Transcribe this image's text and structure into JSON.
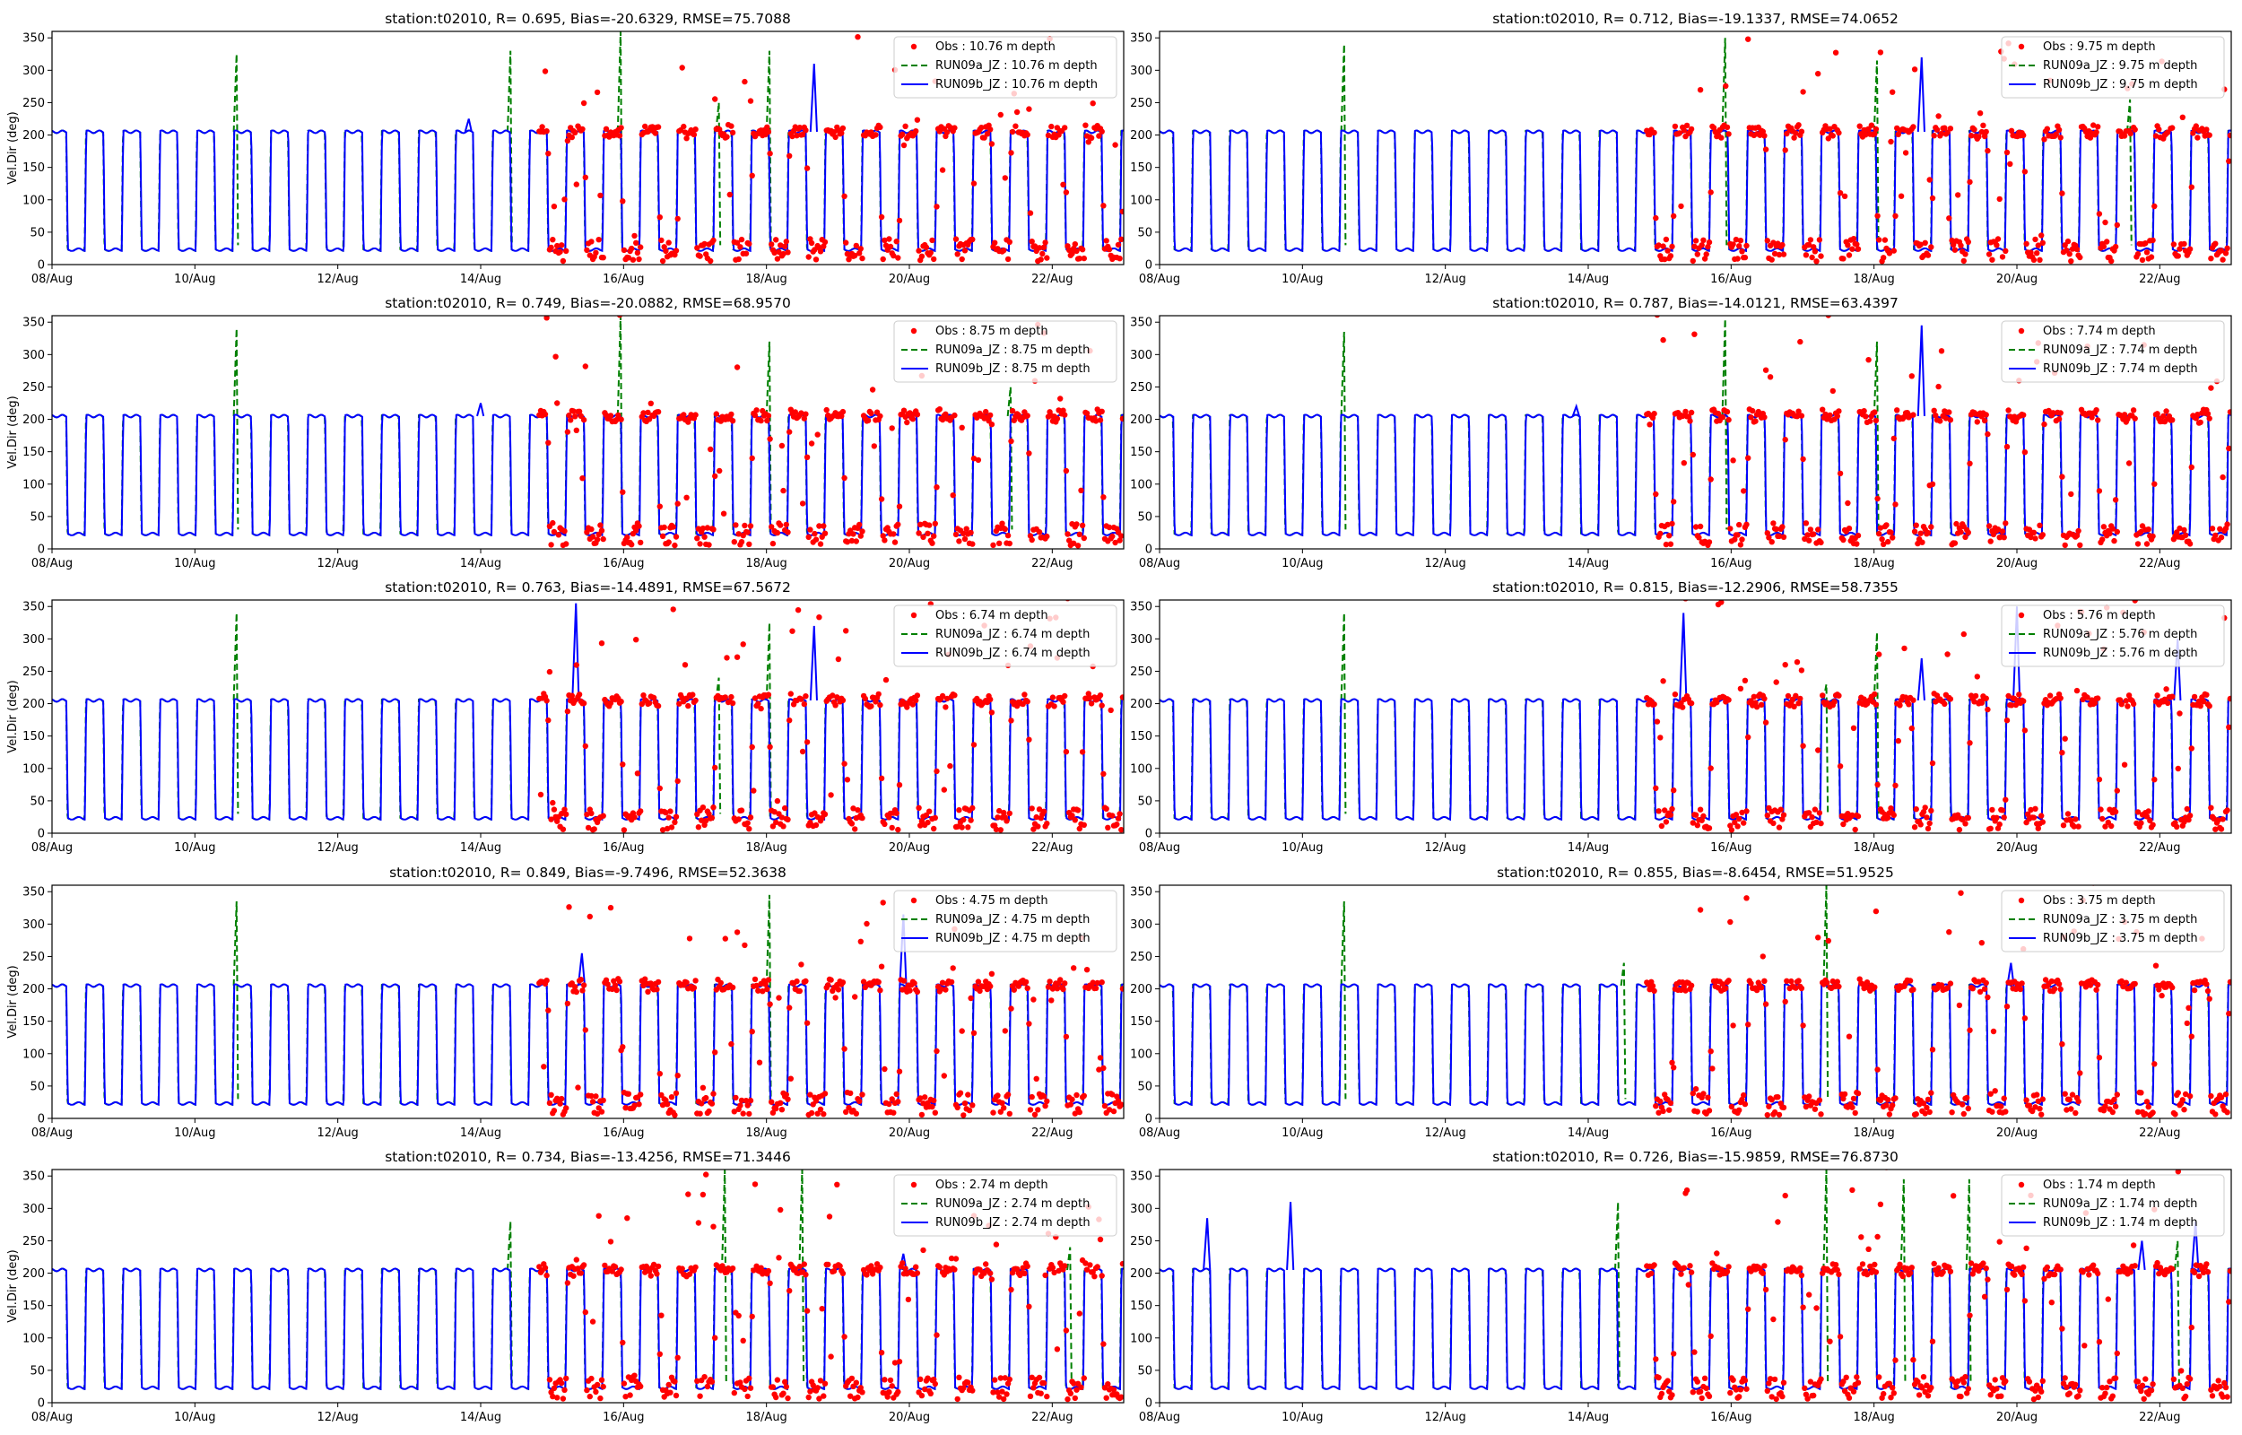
{
  "figure": {
    "ylabel": "Vel.Dir (deg)",
    "x_tick_labels": [
      "08/Aug",
      "10/Aug",
      "12/Aug",
      "14/Aug",
      "16/Aug",
      "18/Aug",
      "20/Aug",
      "22/Aug"
    ],
    "y_tick_labels": [
      "0",
      "50",
      "100",
      "150",
      "200",
      "250",
      "300",
      "350"
    ],
    "colors": {
      "obs": "#ff0000",
      "run_a": "#008000",
      "run_b": "#0000ff"
    }
  },
  "chart_data": [
    {
      "type": "line",
      "title": "station:t02010, R= 0.695, Bias=-20.6329, RMSE=75.7088",
      "depth": "10.76",
      "ylabel": "Vel.Dir (deg)",
      "xlim": [
        "2000-08-08",
        "2000-08-23"
      ],
      "ylim": [
        0,
        360
      ],
      "series": [
        {
          "name": "Obs : 10.76 m depth",
          "kind": "scatter"
        },
        {
          "name": "RUN09a_JZ : 10.76 m depth",
          "kind": "dashed"
        },
        {
          "name": "RUN09b_JZ : 10.76 m depth",
          "kind": "solid"
        }
      ],
      "legend_position": "top-right",
      "spikes_a": [
        {
          "x": "2000-08-10T14:00",
          "y": 325
        },
        {
          "x": "2000-08-14T10:00",
          "y": 330
        },
        {
          "x": "2000-08-15T23:00",
          "y": 360
        },
        {
          "x": "2000-08-17T08:00",
          "y": 250
        },
        {
          "x": "2000-08-18T01:00",
          "y": 330
        }
      ],
      "spikes_b": [
        {
          "x": "2000-08-13T20:00",
          "y": 225
        },
        {
          "x": "2000-08-18T16:00",
          "y": 310
        }
      ]
    },
    {
      "type": "line",
      "title": "station:t02010, R= 0.712, Bias=-19.1337, RMSE=74.0652",
      "depth": "9.75",
      "ylabel": "Vel.Dir (deg)",
      "xlim": [
        "2000-08-08",
        "2000-08-23"
      ],
      "ylim": [
        0,
        360
      ],
      "series": [
        {
          "name": "Obs : 9.75 m depth",
          "kind": "scatter"
        },
        {
          "name": "RUN09a_JZ : 9.75 m depth",
          "kind": "dashed"
        },
        {
          "name": "RUN09b_JZ : 9.75 m depth",
          "kind": "solid"
        }
      ],
      "legend_position": "top-right",
      "spikes_a": [
        {
          "x": "2000-08-10T14:00",
          "y": 340
        },
        {
          "x": "2000-08-15T22:00",
          "y": 350
        },
        {
          "x": "2000-08-18T01:00",
          "y": 315
        },
        {
          "x": "2000-08-21T14:00",
          "y": 255
        }
      ],
      "spikes_b": [
        {
          "x": "2000-08-18T16:00",
          "y": 320
        }
      ]
    },
    {
      "type": "line",
      "title": "station:t02010, R= 0.749, Bias=-20.0882, RMSE=68.9570",
      "depth": "8.75",
      "ylabel": "Vel.Dir (deg)",
      "xlim": [
        "2000-08-08",
        "2000-08-23"
      ],
      "ylim": [
        0,
        360
      ],
      "series": [
        {
          "name": "Obs : 8.75 m depth",
          "kind": "scatter"
        },
        {
          "name": "RUN09a_JZ : 8.75 m depth",
          "kind": "dashed"
        },
        {
          "name": "RUN09b_JZ : 8.75 m depth",
          "kind": "solid"
        }
      ],
      "legend_position": "top-right",
      "spikes_a": [
        {
          "x": "2000-08-10T14:00",
          "y": 340
        },
        {
          "x": "2000-08-15T23:00",
          "y": 360
        },
        {
          "x": "2000-08-18T01:00",
          "y": 320
        },
        {
          "x": "2000-08-21T10:00",
          "y": 250
        }
      ],
      "spikes_b": [
        {
          "x": "2000-08-14T00:00",
          "y": 225
        }
      ]
    },
    {
      "type": "line",
      "title": "station:t02010, R= 0.787, Bias=-14.0121, RMSE=63.4397",
      "depth": "7.74",
      "ylabel": "Vel.Dir (deg)",
      "xlim": [
        "2000-08-08",
        "2000-08-23"
      ],
      "ylim": [
        0,
        360
      ],
      "series": [
        {
          "name": "Obs : 7.74 m depth",
          "kind": "scatter"
        },
        {
          "name": "RUN09a_JZ : 7.74 m depth",
          "kind": "dashed"
        },
        {
          "name": "RUN09b_JZ : 7.74 m depth",
          "kind": "solid"
        }
      ],
      "legend_position": "top-right",
      "spikes_a": [
        {
          "x": "2000-08-10T14:00",
          "y": 335
        },
        {
          "x": "2000-08-15T22:00",
          "y": 355
        },
        {
          "x": "2000-08-18T01:00",
          "y": 320
        }
      ],
      "spikes_b": [
        {
          "x": "2000-08-18T16:00",
          "y": 345
        },
        {
          "x": "2000-08-13T20:00",
          "y": 220
        }
      ]
    },
    {
      "type": "line",
      "title": "station:t02010, R= 0.763, Bias=-14.4891, RMSE=67.5672",
      "depth": "6.74",
      "ylabel": "Vel.Dir (deg)",
      "xlim": [
        "2000-08-08",
        "2000-08-23"
      ],
      "ylim": [
        0,
        360
      ],
      "series": [
        {
          "name": "Obs : 6.74 m depth",
          "kind": "scatter"
        },
        {
          "name": "RUN09a_JZ : 6.74 m depth",
          "kind": "dashed"
        },
        {
          "name": "RUN09b_JZ : 6.74 m depth",
          "kind": "solid"
        }
      ],
      "legend_position": "top-right",
      "spikes_a": [
        {
          "x": "2000-08-10T14:00",
          "y": 340
        },
        {
          "x": "2000-08-18T01:00",
          "y": 325
        },
        {
          "x": "2000-08-17T08:00",
          "y": 240
        }
      ],
      "spikes_b": [
        {
          "x": "2000-08-15T08:00",
          "y": 355
        },
        {
          "x": "2000-08-18T16:00",
          "y": 320
        }
      ]
    },
    {
      "type": "line",
      "title": "station:t02010, R= 0.815, Bias=-12.2906, RMSE=58.7355",
      "depth": "5.76",
      "ylabel": "Vel.Dir (deg)",
      "xlim": [
        "2000-08-08",
        "2000-08-23"
      ],
      "ylim": [
        0,
        360
      ],
      "series": [
        {
          "name": "Obs : 5.76 m depth",
          "kind": "scatter"
        },
        {
          "name": "RUN09a_JZ : 5.76 m depth",
          "kind": "dashed"
        },
        {
          "name": "RUN09b_JZ : 5.76 m depth",
          "kind": "solid"
        }
      ],
      "legend_position": "top-right",
      "spikes_a": [
        {
          "x": "2000-08-10T14:00",
          "y": 340
        },
        {
          "x": "2000-08-18T01:00",
          "y": 310
        },
        {
          "x": "2000-08-17T08:00",
          "y": 230
        }
      ],
      "spikes_b": [
        {
          "x": "2000-08-15T08:00",
          "y": 340
        },
        {
          "x": "2000-08-18T16:00",
          "y": 270
        },
        {
          "x": "2000-08-20T00:00",
          "y": 350
        },
        {
          "x": "2000-08-22T06:00",
          "y": 300
        }
      ]
    },
    {
      "type": "line",
      "title": "station:t02010, R= 0.849, Bias=-9.7496, RMSE=52.3638",
      "depth": "4.75",
      "ylabel": "Vel.Dir (deg)",
      "xlim": [
        "2000-08-08",
        "2000-08-23"
      ],
      "ylim": [
        0,
        360
      ],
      "series": [
        {
          "name": "Obs : 4.75 m depth",
          "kind": "scatter"
        },
        {
          "name": "RUN09a_JZ : 4.75 m depth",
          "kind": "dashed"
        },
        {
          "name": "RUN09b_JZ : 4.75 m depth",
          "kind": "solid"
        }
      ],
      "legend_position": "top-right",
      "spikes_a": [
        {
          "x": "2000-08-10T14:00",
          "y": 335
        },
        {
          "x": "2000-08-18T01:00",
          "y": 345
        }
      ],
      "spikes_b": [
        {
          "x": "2000-08-15T10:00",
          "y": 255
        },
        {
          "x": "2000-08-19T22:00",
          "y": 315
        }
      ]
    },
    {
      "type": "line",
      "title": "station:t02010, R= 0.855, Bias=-8.6454, RMSE=51.9525",
      "depth": "3.75",
      "ylabel": "Vel.Dir (deg)",
      "xlim": [
        "2000-08-08",
        "2000-08-23"
      ],
      "ylim": [
        0,
        360
      ],
      "series": [
        {
          "name": "Obs : 3.75 m depth",
          "kind": "scatter"
        },
        {
          "name": "RUN09a_JZ : 3.75 m depth",
          "kind": "dashed"
        },
        {
          "name": "RUN09b_JZ : 3.75 m depth",
          "kind": "solid"
        }
      ],
      "legend_position": "top-right",
      "spikes_a": [
        {
          "x": "2000-08-10T14:00",
          "y": 335
        },
        {
          "x": "2000-08-14T12:00",
          "y": 240
        },
        {
          "x": "2000-08-17T08:00",
          "y": 360
        }
      ],
      "spikes_b": [
        {
          "x": "2000-08-19T22:00",
          "y": 240
        }
      ]
    },
    {
      "type": "line",
      "title": "station:t02010, R= 0.734, Bias=-13.4256, RMSE=71.3446",
      "depth": "2.74",
      "ylabel": "Vel.Dir (deg)",
      "xlim": [
        "2000-08-08",
        "2000-08-23"
      ],
      "ylim": [
        0,
        360
      ],
      "series": [
        {
          "name": "Obs : 2.74 m depth",
          "kind": "scatter"
        },
        {
          "name": "RUN09a_JZ : 2.74 m depth",
          "kind": "dashed"
        },
        {
          "name": "RUN09b_JZ : 2.74 m depth",
          "kind": "solid"
        }
      ],
      "legend_position": "top-right",
      "spikes_a": [
        {
          "x": "2000-08-14T10:00",
          "y": 280
        },
        {
          "x": "2000-08-17T10:00",
          "y": 360
        },
        {
          "x": "2000-08-18T12:00",
          "y": 360
        },
        {
          "x": "2000-08-22T06:00",
          "y": 240
        }
      ],
      "spikes_b": [
        {
          "x": "2000-08-19T22:00",
          "y": 230
        }
      ]
    },
    {
      "type": "line",
      "title": "station:t02010, R= 0.726, Bias=-15.9859, RMSE=76.8730",
      "depth": "1.74",
      "ylabel": "Vel.Dir (deg)",
      "xlim": [
        "2000-08-08",
        "2000-08-23"
      ],
      "ylim": [
        0,
        360
      ],
      "series": [
        {
          "name": "Obs : 1.74 m depth",
          "kind": "scatter"
        },
        {
          "name": "RUN09a_JZ : 1.74 m depth",
          "kind": "dashed"
        },
        {
          "name": "RUN09b_JZ : 1.74 m depth",
          "kind": "solid"
        }
      ],
      "legend_position": "top-right",
      "spikes_a": [
        {
          "x": "2000-08-14T10:00",
          "y": 310
        },
        {
          "x": "2000-08-17T08:00",
          "y": 360
        },
        {
          "x": "2000-08-18T10:00",
          "y": 345
        },
        {
          "x": "2000-08-19T08:00",
          "y": 345
        },
        {
          "x": "2000-08-22T06:00",
          "y": 250
        }
      ],
      "spikes_b": [
        {
          "x": "2000-08-08T16:00",
          "y": 285
        },
        {
          "x": "2000-08-09T20:00",
          "y": 310
        },
        {
          "x": "2000-08-21T18:00",
          "y": 250
        },
        {
          "x": "2000-08-22T12:00",
          "y": 280
        }
      ]
    }
  ]
}
